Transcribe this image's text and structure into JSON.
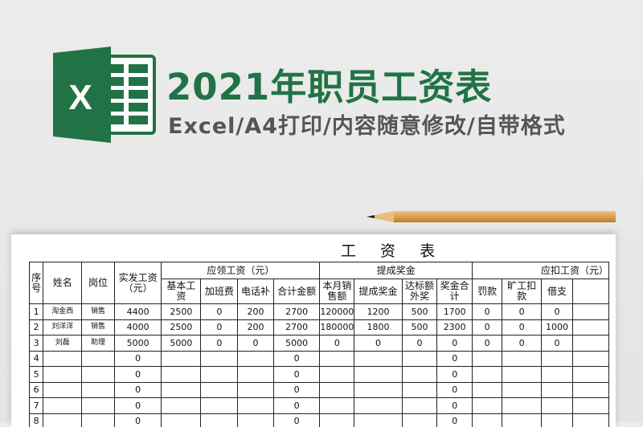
{
  "banner": {
    "title": "2021年职员工资表",
    "subtitle": "Excel/A4打印/内容随意修改/自带格式",
    "logo_letter": "X",
    "brand_color": "#217346"
  },
  "sheet": {
    "title": "工 资 表",
    "headers": {
      "seq": "序号",
      "name": "姓名",
      "position": "岗位",
      "actual_pay": "实发工资（元）",
      "group_payable": "应领工资（元）",
      "group_commission": "提成奖金",
      "group_deduction": "应扣工资（元）",
      "sub": [
        "基本工资",
        "加班费",
        "电话补",
        "合计金额",
        "本月销售额",
        "提成奖金",
        "达标额外奖",
        "奖金合计",
        "罚款",
        "旷工扣款",
        "借支"
      ]
    },
    "rows": [
      [
        "1",
        "淘金西",
        "销售",
        "4400",
        "2500",
        "0",
        "200",
        "2700",
        "120000",
        "1200",
        "500",
        "1700",
        "0",
        "0",
        "0"
      ],
      [
        "2",
        "刘洋洋",
        "销售",
        "4000",
        "2500",
        "0",
        "200",
        "2700",
        "180000",
        "1800",
        "500",
        "2300",
        "0",
        "0",
        "1000"
      ],
      [
        "3",
        "刘磊",
        "助理",
        "5000",
        "5000",
        "0",
        "0",
        "5000",
        "0",
        "0",
        "0",
        "0",
        "0",
        "0",
        "0"
      ],
      [
        "4",
        "",
        "",
        "0",
        "",
        "",
        "",
        "0",
        "",
        "",
        "",
        "0",
        "",
        "",
        ""
      ],
      [
        "5",
        "",
        "",
        "0",
        "",
        "",
        "",
        "0",
        "",
        "",
        "",
        "0",
        "",
        "",
        ""
      ],
      [
        "6",
        "",
        "",
        "0",
        "",
        "",
        "",
        "0",
        "",
        "",
        "",
        "0",
        "",
        "",
        ""
      ],
      [
        "7",
        "",
        "",
        "0",
        "",
        "",
        "",
        "0",
        "",
        "",
        "",
        "0",
        "",
        "",
        ""
      ],
      [
        "8",
        "",
        "",
        "0",
        "",
        "",
        "",
        "0",
        "",
        "",
        "",
        "0",
        "",
        "",
        ""
      ]
    ]
  }
}
